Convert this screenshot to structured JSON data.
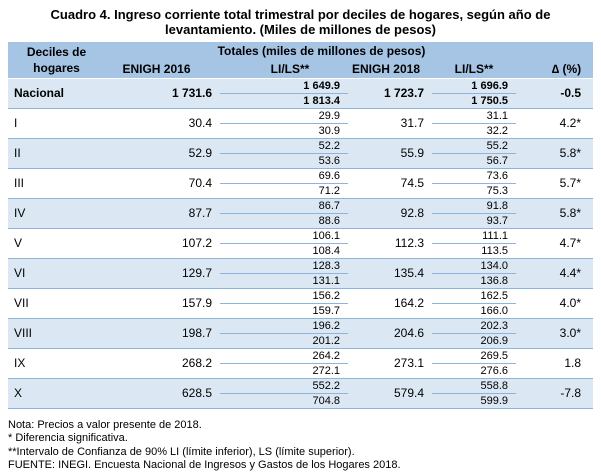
{
  "title": {
    "line1": "Cuadro 4. Ingreso corriente total trimestral por deciles de hogares, según año de",
    "line2": "levantamiento. (Miles de millones de pesos)"
  },
  "table": {
    "header": {
      "deciles_line1": "Deciles de",
      "deciles_line2": "hogares",
      "totales": "Totales (miles de millones de pesos)",
      "enigh2016": "ENIGH 2016",
      "lils_1": "LI/LS**",
      "enigh2018": "ENIGH 2018",
      "lils_2": "LI/LS**",
      "delta": "∆ (%)"
    },
    "rows": [
      {
        "decil": "Nacional",
        "enigh2016": "1 731.6",
        "li2016": "1 649.9",
        "ls2016": "1 813.4",
        "enigh2018": "1 723.7",
        "li2018": "1 696.9",
        "ls2018": "1 750.5",
        "delta": "-0.5"
      },
      {
        "decil": "I",
        "enigh2016": "30.4",
        "li2016": "29.9",
        "ls2016": "30.9",
        "enigh2018": "31.7",
        "li2018": "31.1",
        "ls2018": "32.2",
        "delta": "4.2*"
      },
      {
        "decil": "II",
        "enigh2016": "52.9",
        "li2016": "52.2",
        "ls2016": "53.6",
        "enigh2018": "55.9",
        "li2018": "55.2",
        "ls2018": "56.7",
        "delta": "5.8*"
      },
      {
        "decil": "III",
        "enigh2016": "70.4",
        "li2016": "69.6",
        "ls2016": "71.2",
        "enigh2018": "74.5",
        "li2018": "73.6",
        "ls2018": "75.3",
        "delta": "5.7*"
      },
      {
        "decil": "IV",
        "enigh2016": "87.7",
        "li2016": "86.7",
        "ls2016": "88.6",
        "enigh2018": "92.8",
        "li2018": "91.8",
        "ls2018": "93.7",
        "delta": "5.8*"
      },
      {
        "decil": "V",
        "enigh2016": "107.2",
        "li2016": "106.1",
        "ls2016": "108.4",
        "enigh2018": "112.3",
        "li2018": "111.1",
        "ls2018": "113.5",
        "delta": "4.7*"
      },
      {
        "decil": "VI",
        "enigh2016": "129.7",
        "li2016": "128.3",
        "ls2016": "131.1",
        "enigh2018": "135.4",
        "li2018": "134.0",
        "ls2018": "136.8",
        "delta": "4.4*"
      },
      {
        "decil": "VII",
        "enigh2016": "157.9",
        "li2016": "156.2",
        "ls2016": "159.7",
        "enigh2018": "164.2",
        "li2018": "162.5",
        "ls2018": "166.0",
        "delta": "4.0*"
      },
      {
        "decil": "VIII",
        "enigh2016": "198.7",
        "li2016": "196.2",
        "ls2016": "201.2",
        "enigh2018": "204.6",
        "li2018": "202.3",
        "ls2018": "206.9",
        "delta": "3.0*"
      },
      {
        "decil": "IX",
        "enigh2016": "268.2",
        "li2016": "264.2",
        "ls2016": "272.1",
        "enigh2018": "273.1",
        "li2018": "269.5",
        "ls2018": "276.6",
        "delta": "1.8"
      },
      {
        "decil": "X",
        "enigh2016": "628.5",
        "li2016": "552.2",
        "ls2016": "704.8",
        "enigh2018": "579.4",
        "li2018": "558.8",
        "ls2018": "599.9",
        "delta": "-7.8"
      }
    ]
  },
  "notes": [
    "Nota: Precios a valor presente de 2018.",
    "* Diferencia significativa.",
    "**Intervalo de Confianza de 90% LI (límite inferior), LS (límite superior).",
    "FUENTE: INEGI. Encuesta Nacional de Ingresos y Gastos de los Hogares 2018."
  ],
  "colors": {
    "header_bg": "#a6c5e5",
    "band_bg": "#dbe8f4",
    "line_blue": "#8cb4dc",
    "text": "#000000"
  }
}
